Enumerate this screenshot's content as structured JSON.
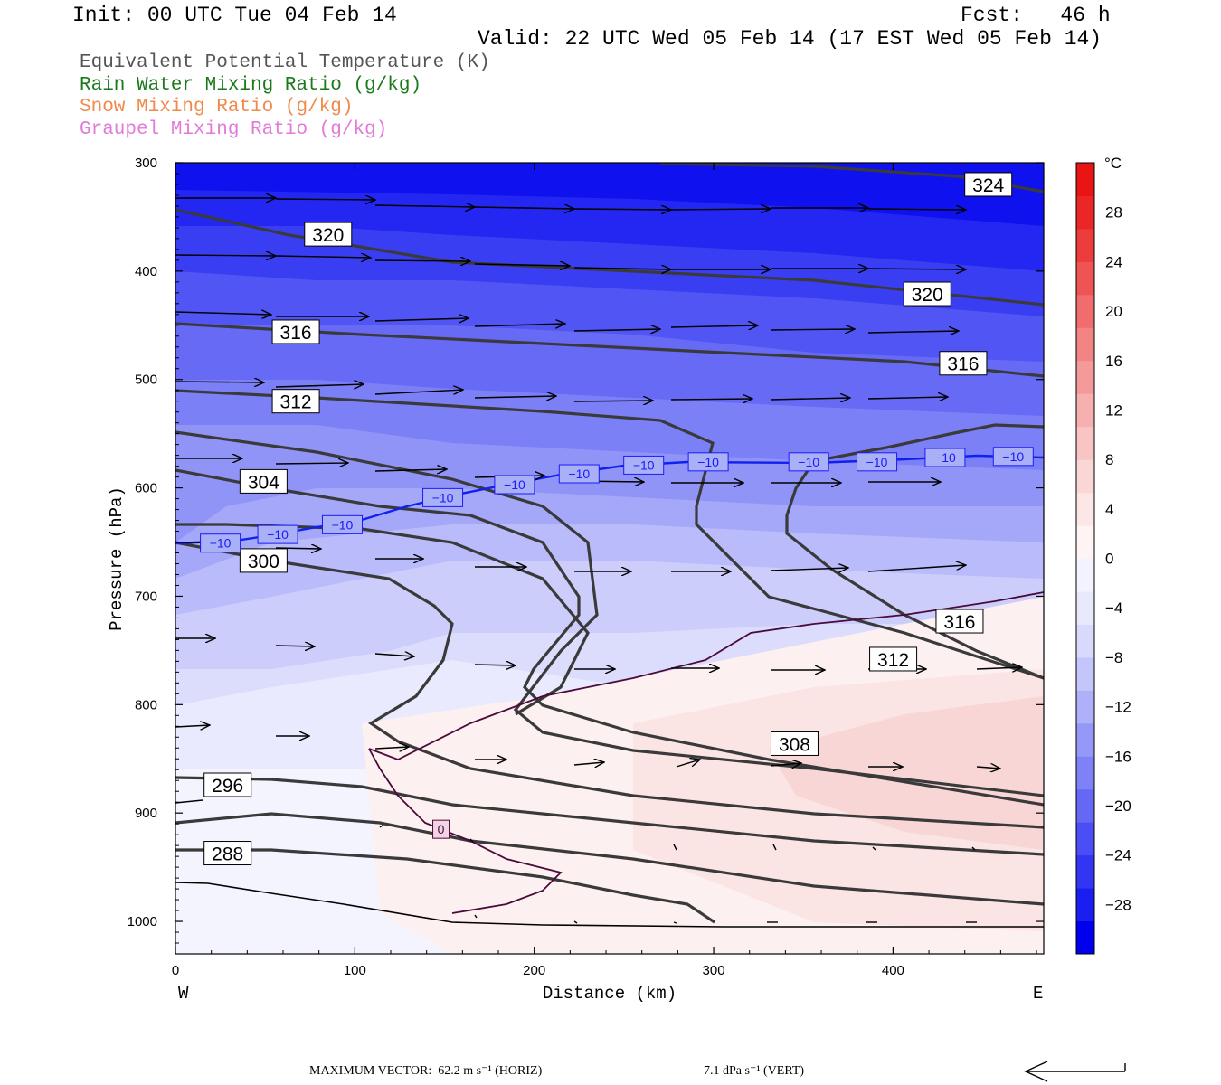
{
  "header": {
    "init": "Init: 00 UTC Tue 04 Feb 14",
    "fcst": "Fcst:   46 h",
    "valid": "Valid: 22 UTC Wed 05 Feb 14 (17 EST Wed 05 Feb 14)"
  },
  "legend": [
    {
      "label": "Equivalent Potential Temperature (K)",
      "color": "#555555"
    },
    {
      "label": "Rain Water Mixing Ratio (g/kg)",
      "color": "#1a7a1a"
    },
    {
      "label": "Snow Mixing Ratio (g/kg)",
      "color": "#f08a4b"
    },
    {
      "label": "Graupel Mixing Ratio (g/kg)",
      "color": "#e27ad8"
    }
  ],
  "footer": {
    "max_vector": "MAXIMUM VECTOR:  62.2 m s⁻¹ (HORIZ)",
    "vert": "7.1 dPa s⁻¹ (VERT)"
  },
  "chart_data": {
    "type": "cross-section contour",
    "xlabel": "Distance (km)",
    "ylabel": "Pressure (hPa)",
    "xlim": [
      0,
      484
    ],
    "ylim": [
      1030,
      300
    ],
    "x_ticks": [
      "0",
      "100",
      "200",
      "300",
      "400"
    ],
    "x_tick_values": [
      0,
      100,
      200,
      300,
      400
    ],
    "y_ticks": [
      "300",
      "400",
      "500",
      "600",
      "700",
      "800",
      "900",
      "1000"
    ],
    "y_tick_values": [
      300,
      400,
      500,
      600,
      700,
      800,
      900,
      1000
    ],
    "x_end_labels": {
      "left": "W",
      "right": "E"
    },
    "colorbar": {
      "unit": "°C",
      "labels": [
        "28",
        "24",
        "20",
        "16",
        "12",
        "8",
        "4",
        "0",
        "−4",
        "−8",
        "−12",
        "−16",
        "−20",
        "−24",
        "−28"
      ],
      "values": [
        28,
        24,
        20,
        16,
        12,
        8,
        4,
        0,
        -4,
        -8,
        -12,
        -16,
        -20,
        -24,
        -28
      ],
      "range": [
        -32,
        32
      ],
      "colors_cold": [
        "#0000ee",
        "#1a1ef0",
        "#3236f2",
        "#4a4ef4",
        "#6468f5",
        "#7e82f6",
        "#9698f8",
        "#aeb0f9",
        "#c4c6fb",
        "#d8d9fc",
        "#e8e9fd",
        "#f2f3fe"
      ],
      "colors_warm": [
        "#fff4f4",
        "#fde6e6",
        "#fbd6d6",
        "#f9c4c4",
        "#f7b0b0",
        "#f59a9a",
        "#f38484",
        "#f16c6c",
        "#ef5454",
        "#ed3c3c",
        "#eb2626",
        "#e91414"
      ]
    },
    "theta_e_labels": [
      {
        "text": "324",
        "x": 442,
        "p": 320
      },
      {
        "text": "320",
        "x": 74,
        "p": 366
      },
      {
        "text": "320",
        "x": 408,
        "p": 421
      },
      {
        "text": "316",
        "x": 56,
        "p": 456
      },
      {
        "text": "316",
        "x": 428,
        "p": 485
      },
      {
        "text": "312",
        "x": 56,
        "p": 520
      },
      {
        "text": "304",
        "x": 38,
        "p": 594
      },
      {
        "text": "300",
        "x": 38,
        "p": 667
      },
      {
        "text": "316",
        "x": 426,
        "p": 723
      },
      {
        "text": "312",
        "x": 389,
        "p": 758
      },
      {
        "text": "308",
        "x": 334,
        "p": 836
      },
      {
        "text": "296",
        "x": 18,
        "p": 874
      },
      {
        "text": "288",
        "x": 18,
        "p": 937
      }
    ],
    "isotherm_minus10_labels": [
      {
        "text": "−10",
        "x": 24,
        "p": 651
      },
      {
        "text": "−10",
        "x": 56,
        "p": 643
      },
      {
        "text": "−10",
        "x": 92,
        "p": 634
      },
      {
        "text": "−10",
        "x": 148,
        "p": 609
      },
      {
        "text": "−10",
        "x": 188,
        "p": 597
      },
      {
        "text": "−10",
        "x": 224,
        "p": 587
      },
      {
        "text": "−10",
        "x": 260,
        "p": 579
      },
      {
        "text": "−10",
        "x": 296,
        "p": 576
      },
      {
        "text": "−10",
        "x": 352,
        "p": 576
      },
      {
        "text": "−10",
        "x": 390,
        "p": 576
      },
      {
        "text": "−10",
        "x": 428,
        "p": 572
      },
      {
        "text": "−10",
        "x": 466,
        "p": 571
      }
    ],
    "zero_isotherm_label": {
      "text": "0",
      "x": 148,
      "p": 915
    }
  }
}
